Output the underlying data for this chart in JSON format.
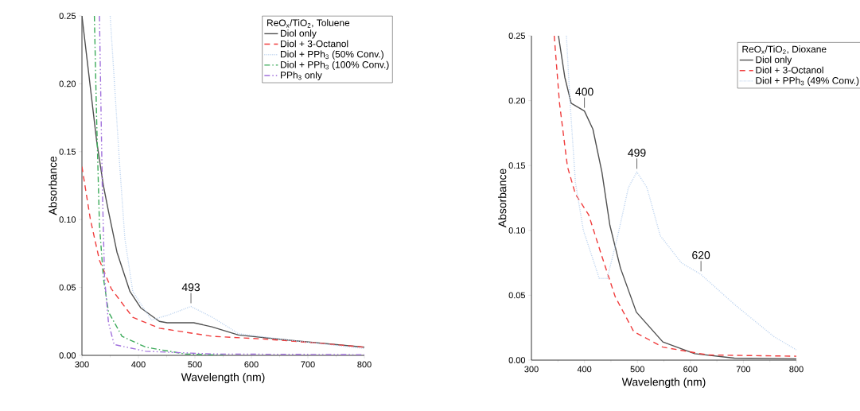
{
  "chart_data": [
    {
      "type": "line",
      "xlabel": "Wavelength (nm)",
      "ylabel": "Absorbance",
      "legend_title": "ReO$_{x}$/TiO$_{2}$, Toluene",
      "legend": "top right",
      "grid": false,
      "xlim": [
        300,
        800
      ],
      "ylim": [
        0,
        0.25
      ],
      "xticks": [
        300,
        400,
        500,
        600,
        700,
        800
      ],
      "yticks": [
        {
          "value": 0,
          "label": "0.00"
        },
        {
          "value": 0.05,
          "label": "0.05"
        },
        {
          "value": 0.1,
          "label": "0.10"
        },
        {
          "value": 0.15,
          "label": "0.15"
        },
        {
          "value": 0.2,
          "label": "0.20"
        },
        {
          "value": 0.25,
          "label": "0.25"
        }
      ],
      "annotations": [
        {
          "text": "493",
          "x": 493,
          "y": 0.036
        }
      ],
      "series": [
        {
          "name": "Diol only",
          "color": "#505050",
          "line_style": "solid",
          "x": [
            300,
            326,
            338,
            347,
            362,
            385,
            404,
            437,
            451,
            498,
            530,
            577,
            671,
            800
          ],
          "values": [
            0.25,
            0.158,
            0.125,
            0.106,
            0.076,
            0.047,
            0.035,
            0.025,
            0.024,
            0.024,
            0.021,
            0.015,
            0.011,
            0.006
          ]
        },
        {
          "name": "Diol + 3-Octanol",
          "color": "#f03c3c",
          "line_style": "dashed",
          "x": [
            300,
            315,
            331,
            352,
            390,
            437,
            531,
            624,
            718,
            800
          ],
          "values": [
            0.139,
            0.1,
            0.07,
            0.049,
            0.028,
            0.02,
            0.014,
            0.012,
            0.009,
            0.006
          ]
        },
        {
          "name": "Diol + PPh$_{3}$ (50% Conv.)",
          "color": "#b8d0ee",
          "line_style": "dotted",
          "x": [
            350,
            366,
            376,
            390,
            423,
            455,
            493,
            531,
            577,
            671,
            800
          ],
          "values": [
            0.25,
            0.145,
            0.086,
            0.047,
            0.026,
            0.03,
            0.036,
            0.028,
            0.016,
            0.011,
            0.005
          ]
        },
        {
          "name": "Diol + PPh$_{3}$ (100% Conv.)",
          "color": "#3caa5a",
          "line_style": "dashdot",
          "x": [
            322,
            326,
            331,
            338,
            347,
            371,
            413,
            483,
            550
          ],
          "values": [
            0.25,
            0.174,
            0.096,
            0.057,
            0.032,
            0.014,
            0.006,
            0.001,
            0
          ]
        },
        {
          "name": "PPh$_{3}$ only",
          "color": "#a070dc",
          "line_style": "dashdotdot",
          "x": [
            331,
            336,
            340,
            347,
            357,
            413,
            531,
            800
          ],
          "values": [
            0.25,
            0.125,
            0.057,
            0.024,
            0.008,
            0.003,
            0.001,
            0.0005
          ]
        }
      ]
    },
    {
      "type": "line",
      "xlabel": "Wavelength (nm)",
      "ylabel": "Absorbance",
      "legend_title": "ReO$_{x}$/TiO$_{2}$, Dioxane",
      "legend": "top right",
      "grid": false,
      "xlim": [
        300,
        800
      ],
      "ylim": [
        0,
        0.25
      ],
      "xticks": [
        300,
        400,
        500,
        600,
        700,
        800
      ],
      "yticks": [
        {
          "value": 0,
          "label": "0.00"
        },
        {
          "value": 0.05,
          "label": "0.05"
        },
        {
          "value": 0.1,
          "label": "0.10"
        },
        {
          "value": 0.15,
          "label": "0.15"
        },
        {
          "value": 0.2,
          "label": "0.20"
        },
        {
          "value": 0.25,
          "label": "0.25"
        }
      ],
      "annotations": [
        {
          "text": "400",
          "x": 400,
          "y": 0.192
        },
        {
          "text": "499",
          "x": 499,
          "y": 0.145
        },
        {
          "text": "620",
          "x": 620,
          "y": 0.066
        }
      ],
      "series": [
        {
          "name": "Diol only",
          "color": "#505050",
          "line_style": "solid",
          "x": [
            351,
            363,
            375,
            400,
            416,
            433,
            448,
            468,
            498,
            548,
            608,
            683,
            800
          ],
          "values": [
            0.25,
            0.218,
            0.198,
            0.192,
            0.178,
            0.145,
            0.104,
            0.071,
            0.037,
            0.014,
            0.005,
            0.0015,
            0.001
          ]
        },
        {
          "name": "Diol + 3-Octanol",
          "color": "#f03c3c",
          "line_style": "dashed",
          "x": [
            343,
            353,
            368,
            383,
            408,
            433,
            458,
            493,
            548,
            633,
            800
          ],
          "values": [
            0.25,
            0.198,
            0.149,
            0.128,
            0.112,
            0.08,
            0.049,
            0.022,
            0.01,
            0.004,
            0.003
          ]
        },
        {
          "name": "Diol + PPh$_{3}$ (49% Conv.)",
          "color": "#b8d0ee",
          "line_style": "dotted",
          "x": [
            366,
            373,
            383,
            398,
            428,
            443,
            463,
            483,
            499,
            518,
            543,
            583,
            620,
            683,
            758,
            800
          ],
          "values": [
            0.25,
            0.198,
            0.137,
            0.1,
            0.063,
            0.063,
            0.096,
            0.133,
            0.145,
            0.133,
            0.096,
            0.075,
            0.066,
            0.043,
            0.018,
            0.008
          ]
        }
      ]
    }
  ]
}
